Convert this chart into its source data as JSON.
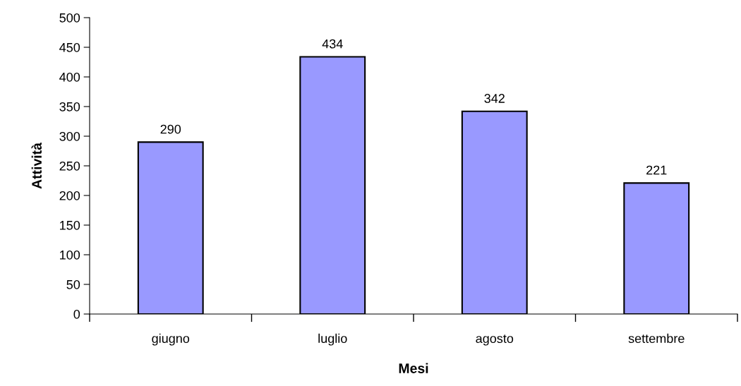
{
  "chart_data": {
    "type": "bar",
    "xlabel": "Mesi",
    "ylabel": "Attività",
    "categories": [
      "giugno",
      "luglio",
      "agosto",
      "settembre"
    ],
    "values": [
      290,
      434,
      342,
      221
    ],
    "color": "#9999ff",
    "ylim": [
      0,
      500
    ],
    "yticks": [
      0,
      50,
      100,
      150,
      200,
      250,
      300,
      350,
      400,
      450,
      500
    ],
    "data_labels": true,
    "grid": false,
    "legend": false
  }
}
